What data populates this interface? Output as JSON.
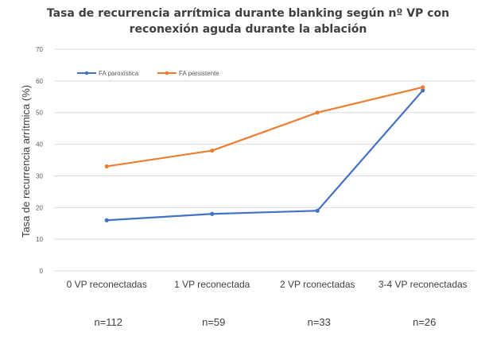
{
  "chart_data": {
    "type": "line",
    "title": [
      "Tasa de recurrencia arrítmica durante blanking según nº VP con",
      "reconexión aguda durante la ablación"
    ],
    "xlabel": "",
    "ylabel": "Tasa de recurrencia arrítmica (%)",
    "categories": [
      "0 VP reconectadas",
      "1 VP reconectada",
      "2 VP rconectadas",
      "3-4 VP reconectadas"
    ],
    "sample_sizes": [
      "n=112",
      "n=59",
      "n=33",
      "n=26"
    ],
    "yticks": [
      "0",
      "10",
      "20",
      "30",
      "40",
      "50",
      "60",
      "70"
    ],
    "ylim": [
      0,
      70
    ],
    "grid": true,
    "legend": "top-left",
    "series": [
      {
        "name": "FA paroxística",
        "color": "#4472c4",
        "values": [
          16,
          18,
          19,
          57
        ]
      },
      {
        "name": "FA persistente",
        "color": "#ed7d31",
        "values": [
          33,
          38,
          50,
          58
        ]
      }
    ]
  }
}
